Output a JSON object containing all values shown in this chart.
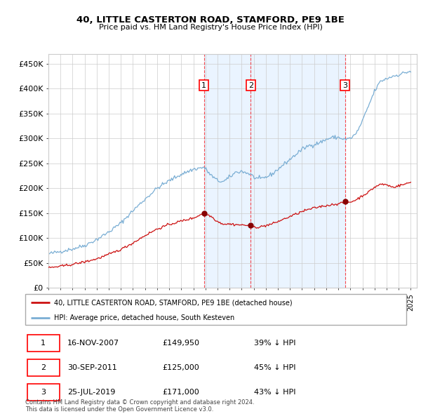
{
  "title": "40, LITTLE CASTERTON ROAD, STAMFORD, PE9 1BE",
  "subtitle": "Price paid vs. HM Land Registry's House Price Index (HPI)",
  "ylabel_ticks": [
    "£0",
    "£50K",
    "£100K",
    "£150K",
    "£200K",
    "£250K",
    "£300K",
    "£350K",
    "£400K",
    "£450K"
  ],
  "ylim": [
    0,
    470000
  ],
  "xlim_start": 1995.0,
  "xlim_end": 2025.5,
  "grid_color": "#cccccc",
  "hpi_color": "#7aaed4",
  "price_color": "#cc1111",
  "shade_color": "#ddeeff",
  "shade_alpha": 0.6,
  "transactions": [
    {
      "label": "1",
      "date_num": 2007.88,
      "price": 149950,
      "date_str": "16-NOV-2007",
      "hpi_pct": "39% ↓ HPI"
    },
    {
      "label": "2",
      "date_num": 2011.75,
      "price": 125000,
      "date_str": "30-SEP-2011",
      "hpi_pct": "45% ↓ HPI"
    },
    {
      "label": "3",
      "date_num": 2019.56,
      "price": 171000,
      "date_str": "25-JUL-2019",
      "hpi_pct": "43% ↓ HPI"
    }
  ],
  "legend_label_price": "40, LITTLE CASTERTON ROAD, STAMFORD, PE9 1BE (detached house)",
  "legend_label_hpi": "HPI: Average price, detached house, South Kesteven",
  "footer": "Contains HM Land Registry data © Crown copyright and database right 2024.\nThis data is licensed under the Open Government Licence v3.0.",
  "table_rows": [
    [
      "1",
      "16-NOV-2007",
      "£149,950",
      "39% ↓ HPI"
    ],
    [
      "2",
      "30-SEP-2011",
      "£125,000",
      "45% ↓ HPI"
    ],
    [
      "3",
      "25-JUL-2019",
      "£171,000",
      "43% ↓ HPI"
    ]
  ],
  "hpi_anchors": [
    [
      1995.0,
      68000
    ],
    [
      1996.0,
      73000
    ],
    [
      1997.0,
      78000
    ],
    [
      1998.0,
      85000
    ],
    [
      1999.0,
      97000
    ],
    [
      2000.0,
      112000
    ],
    [
      2001.0,
      130000
    ],
    [
      2002.0,
      155000
    ],
    [
      2003.0,
      178000
    ],
    [
      2004.0,
      200000
    ],
    [
      2005.0,
      215000
    ],
    [
      2006.0,
      228000
    ],
    [
      2007.0,
      238000
    ],
    [
      2007.88,
      242000
    ],
    [
      2008.5,
      225000
    ],
    [
      2009.0,
      215000
    ],
    [
      2009.5,
      213000
    ],
    [
      2010.0,
      222000
    ],
    [
      2010.5,
      232000
    ],
    [
      2011.0,
      234000
    ],
    [
      2011.75,
      228000
    ],
    [
      2012.0,
      222000
    ],
    [
      2012.5,
      218000
    ],
    [
      2013.0,
      222000
    ],
    [
      2013.5,
      228000
    ],
    [
      2014.0,
      238000
    ],
    [
      2014.5,
      248000
    ],
    [
      2015.0,
      258000
    ],
    [
      2015.5,
      268000
    ],
    [
      2016.0,
      278000
    ],
    [
      2016.5,
      285000
    ],
    [
      2017.0,
      288000
    ],
    [
      2017.5,
      292000
    ],
    [
      2018.0,
      298000
    ],
    [
      2018.5,
      302000
    ],
    [
      2019.0,
      302000
    ],
    [
      2019.56,
      298000
    ],
    [
      2020.0,
      300000
    ],
    [
      2020.5,
      310000
    ],
    [
      2021.0,
      335000
    ],
    [
      2021.5,
      365000
    ],
    [
      2022.0,
      395000
    ],
    [
      2022.5,
      415000
    ],
    [
      2023.0,
      420000
    ],
    [
      2023.5,
      425000
    ],
    [
      2024.0,
      428000
    ],
    [
      2024.5,
      432000
    ],
    [
      2025.0,
      435000
    ]
  ],
  "price_anchors": [
    [
      1995.0,
      40000
    ],
    [
      1996.0,
      43000
    ],
    [
      1997.0,
      47000
    ],
    [
      1998.0,
      52000
    ],
    [
      1999.0,
      58000
    ],
    [
      2000.0,
      67000
    ],
    [
      2001.0,
      77000
    ],
    [
      2002.0,
      90000
    ],
    [
      2003.0,
      105000
    ],
    [
      2004.0,
      118000
    ],
    [
      2005.0,
      127000
    ],
    [
      2006.0,
      134000
    ],
    [
      2007.0,
      140000
    ],
    [
      2007.88,
      149950
    ],
    [
      2008.5,
      143000
    ],
    [
      2009.0,
      133000
    ],
    [
      2009.5,
      128000
    ],
    [
      2010.0,
      128000
    ],
    [
      2010.5,
      127000
    ],
    [
      2011.0,
      126000
    ],
    [
      2011.75,
      125000
    ],
    [
      2012.0,
      122000
    ],
    [
      2012.5,
      122000
    ],
    [
      2013.0,
      125000
    ],
    [
      2013.5,
      128000
    ],
    [
      2014.0,
      133000
    ],
    [
      2014.5,
      138000
    ],
    [
      2015.0,
      143000
    ],
    [
      2015.5,
      148000
    ],
    [
      2016.0,
      153000
    ],
    [
      2016.5,
      157000
    ],
    [
      2017.0,
      160000
    ],
    [
      2017.5,
      163000
    ],
    [
      2018.0,
      165000
    ],
    [
      2018.5,
      167000
    ],
    [
      2019.0,
      169000
    ],
    [
      2019.56,
      171000
    ],
    [
      2020.0,
      172000
    ],
    [
      2020.5,
      177000
    ],
    [
      2021.0,
      185000
    ],
    [
      2021.5,
      192000
    ],
    [
      2022.0,
      202000
    ],
    [
      2022.5,
      208000
    ],
    [
      2023.0,
      207000
    ],
    [
      2023.5,
      202000
    ],
    [
      2024.0,
      205000
    ],
    [
      2024.5,
      208000
    ],
    [
      2025.0,
      212000
    ]
  ]
}
